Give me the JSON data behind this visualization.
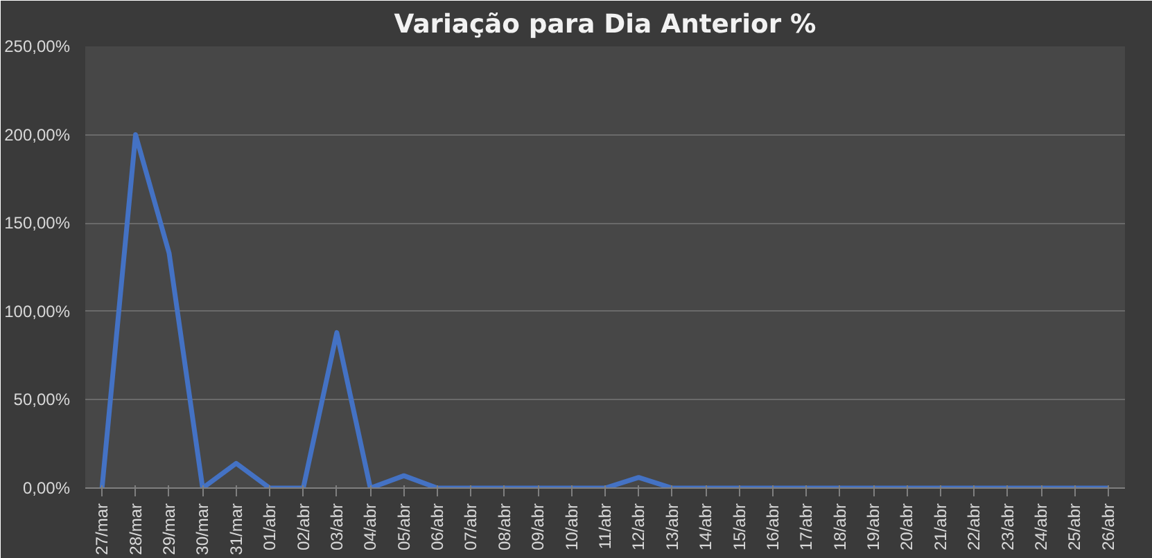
{
  "chart_data": {
    "type": "line",
    "title": "Variação para Dia Anterior %",
    "categories": [
      "27/mar",
      "28/mar",
      "29/mar",
      "30/mar",
      "31/mar",
      "01/abr",
      "02/abr",
      "03/abr",
      "04/abr",
      "05/abr",
      "06/abr",
      "07/abr",
      "08/abr",
      "09/abr",
      "10/abr",
      "11/abr",
      "12/abr",
      "13/abr",
      "14/abr",
      "15/abr",
      "16/abr",
      "17/abr",
      "18/abr",
      "19/abr",
      "20/abr",
      "21/abr",
      "22/abr",
      "23/abr",
      "24/abr",
      "25/abr",
      "26/abr"
    ],
    "series": [
      {
        "color": "#4472c4",
        "values": [
          0,
          200,
          133,
          0,
          14,
          0,
          0,
          88,
          0,
          7,
          0,
          0,
          0,
          0,
          0,
          0,
          6,
          0,
          0,
          0,
          0,
          0,
          0,
          0,
          0,
          0,
          0,
          0,
          0,
          0,
          0
        ]
      }
    ],
    "ylim": [
      0,
      250
    ],
    "yticks": [
      {
        "value": 0,
        "label": "0,00%"
      },
      {
        "value": 50,
        "label": "50,00%"
      },
      {
        "value": 100,
        "label": "100,00%"
      },
      {
        "value": 150,
        "label": "150,00%"
      },
      {
        "value": 200,
        "label": "200,00%"
      },
      {
        "value": 250,
        "label": "250,00%"
      }
    ],
    "grid": "y",
    "marker": "none",
    "line_style": "solid"
  }
}
